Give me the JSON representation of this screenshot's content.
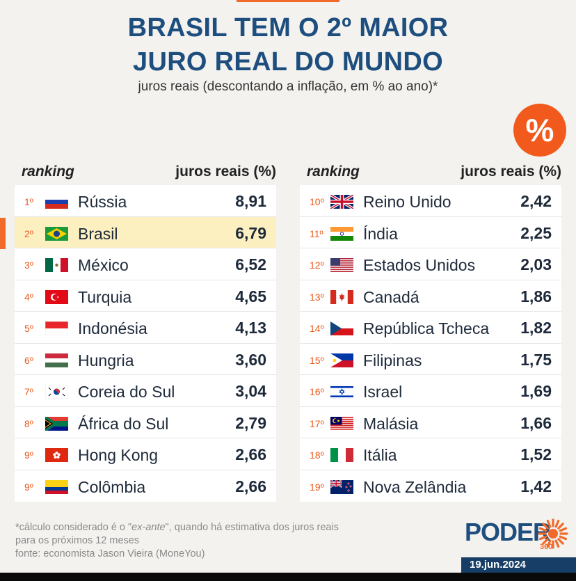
{
  "header": {
    "title_line1": "BRASIL TEM O 2º MAIOR",
    "title_line2": "JURO REAL DO MUNDO",
    "subtitle": "juros reais (descontando a inflação, em % ao ano)*",
    "badge": "%"
  },
  "columns": {
    "rank_header": "ranking",
    "value_header": "juros reais (%)"
  },
  "chart_data": {
    "type": "table",
    "title": "BRASIL TEM O 2º MAIOR JURO REAL DO MUNDO",
    "subtitle": "juros reais (descontando a inflação, em % ao ano)*",
    "columns": [
      "ranking",
      "juros reais (%)"
    ],
    "rows": [
      {
        "rank": "1º",
        "country": "Rússia",
        "value": "8,91",
        "flag": "russia-flag"
      },
      {
        "rank": "2º",
        "country": "Brasil",
        "value": "6,79",
        "flag": "brazil-flag",
        "highlight": true
      },
      {
        "rank": "3º",
        "country": "México",
        "value": "6,52",
        "flag": "mexico-flag"
      },
      {
        "rank": "4º",
        "country": "Turquia",
        "value": "4,65",
        "flag": "turkey-flag"
      },
      {
        "rank": "5º",
        "country": "Indonésia",
        "value": "4,13",
        "flag": "indonesia-flag"
      },
      {
        "rank": "6º",
        "country": "Hungria",
        "value": "3,60",
        "flag": "hungary-flag"
      },
      {
        "rank": "7º",
        "country": "Coreia do Sul",
        "value": "3,04",
        "flag": "south-korea-flag"
      },
      {
        "rank": "8º",
        "country": "África do Sul",
        "value": "2,79",
        "flag": "south-africa-flag"
      },
      {
        "rank": "9º",
        "country": "Hong Kong",
        "value": "2,66",
        "flag": "hong-kong-flag"
      },
      {
        "rank": "9º",
        "country": "Colômbia",
        "value": "2,66",
        "flag": "colombia-flag"
      },
      {
        "rank": "10º",
        "country": "Reino Unido",
        "value": "2,42",
        "flag": "uk-flag"
      },
      {
        "rank": "11º",
        "country": "Índia",
        "value": "2,25",
        "flag": "india-flag"
      },
      {
        "rank": "12º",
        "country": "Estados Unidos",
        "value": "2,03",
        "flag": "usa-flag"
      },
      {
        "rank": "13º",
        "country": "Canadá",
        "value": "1,86",
        "flag": "canada-flag"
      },
      {
        "rank": "14º",
        "country": "República Tcheca",
        "value": "1,82",
        "flag": "czech-flag"
      },
      {
        "rank": "15º",
        "country": "Filipinas",
        "value": "1,75",
        "flag": "philippines-flag"
      },
      {
        "rank": "16º",
        "country": "Israel",
        "value": "1,69",
        "flag": "israel-flag"
      },
      {
        "rank": "17º",
        "country": "Malásia",
        "value": "1,66",
        "flag": "malaysia-flag"
      },
      {
        "rank": "18º",
        "country": "Itália",
        "value": "1,52",
        "flag": "italy-flag"
      },
      {
        "rank": "19º",
        "country": "Nova Zelândia",
        "value": "1,42",
        "flag": "new-zealand-flag"
      }
    ]
  },
  "footer": {
    "note_prefix": "*cálculo considerado é o \"",
    "note_italic": "ex-ante",
    "note_suffix": "\", quando há estimativa dos juros reais",
    "note_line2": "para os próximos 12 meses",
    "source": "fonte: economista Jason Vieira (MoneYou)",
    "logo": "PODER",
    "logo_sub": "360",
    "date": "19.jun.2024"
  },
  "colors": {
    "title": "#1d4e7e",
    "accent": "#f26a2a",
    "highlight_row": "#fcefc0"
  }
}
